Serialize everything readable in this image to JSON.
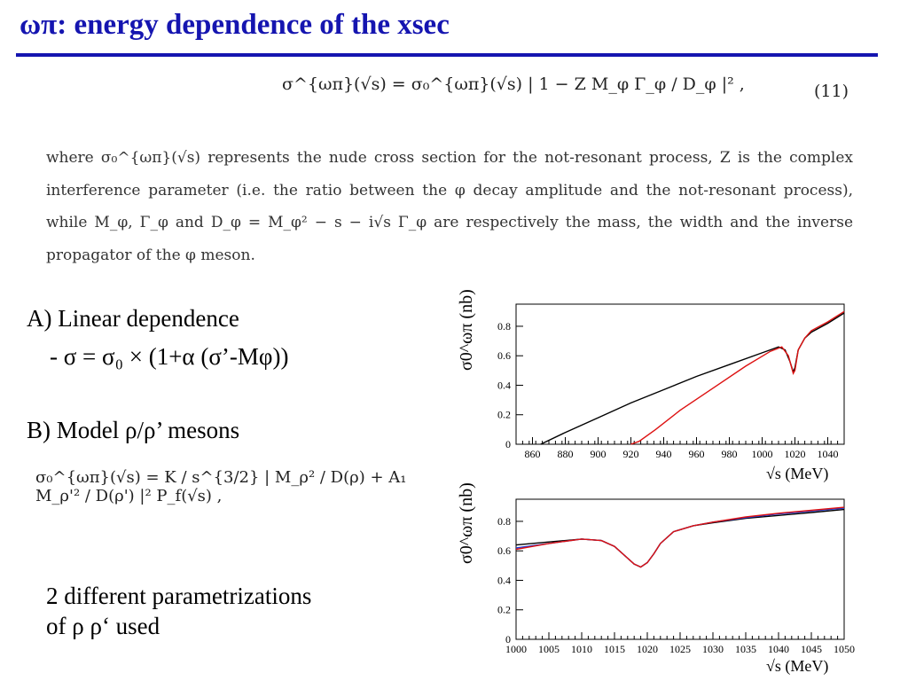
{
  "slide": {
    "title": "ωπ: energy dependence of the xsec",
    "eq11": {
      "body": "σ^{ωπ}(√s) = σ₀^{ωπ}(√s) | 1 − Z M_φ Γ_φ / D_φ |² ,",
      "number": "(11)"
    },
    "paragraph": "where σ₀^{ωπ}(√s) represents the nude cross section for the not-resonant process, Z is the complex interference parameter (i.e. the ratio between the φ decay amplitude and the not-resonant process), while M_φ, Γ_φ and D_φ = M_φ² − s − i√s Γ_φ are respectively the mass, the width and the inverse propagator of the φ meson.",
    "headingA": "A)  Linear dependence",
    "formulaA": "- σ = σ₀ × (1+α (σ’-Mφ))",
    "headingB": "B) Model ρ/ρ’ mesons",
    "eqB": "σ₀^{ωπ}(√s) = K / s^{3/2} | M_ρ² / D(ρ) + A₁ M_ρ'² / D(ρ') |² P_f(√s) ,",
    "note_line1": "2 different parametrizations",
    "note_line2": "of ρ ρ‘ used"
  },
  "chart_data": [
    {
      "type": "line",
      "ylabel": "σ0^ωπ (nb)",
      "xlabel": "√s (MeV)",
      "xlim": [
        850,
        1050
      ],
      "ylim": [
        0,
        0.95
      ],
      "x_ticks": [
        860,
        880,
        900,
        920,
        940,
        960,
        980,
        1000,
        1020,
        1040
      ],
      "y_ticks": [
        0,
        0.2,
        0.4,
        0.6,
        0.8
      ],
      "series": [
        {
          "color": "#000000",
          "x": [
            865,
            880,
            900,
            920,
            940,
            960,
            980,
            1000,
            1010,
            1014,
            1017,
            1019,
            1020,
            1022,
            1026,
            1030,
            1040,
            1050
          ],
          "y": [
            0.0,
            0.08,
            0.18,
            0.28,
            0.37,
            0.46,
            0.54,
            0.62,
            0.66,
            0.64,
            0.56,
            0.49,
            0.52,
            0.64,
            0.72,
            0.76,
            0.82,
            0.89
          ]
        },
        {
          "color": "#dd1111",
          "x": [
            920,
            925,
            935,
            950,
            970,
            990,
            1005,
            1012,
            1016,
            1018,
            1019,
            1020,
            1022,
            1026,
            1030,
            1040,
            1050
          ],
          "y": [
            0.0,
            0.02,
            0.1,
            0.23,
            0.38,
            0.53,
            0.63,
            0.66,
            0.6,
            0.52,
            0.48,
            0.5,
            0.64,
            0.72,
            0.77,
            0.83,
            0.9
          ]
        }
      ]
    },
    {
      "type": "line",
      "ylabel": "σ0^ωπ (nb)",
      "xlabel": "√s (MeV)",
      "xlim": [
        1000,
        1050
      ],
      "ylim": [
        0,
        0.95
      ],
      "x_ticks": [
        1000,
        1005,
        1010,
        1015,
        1020,
        1025,
        1030,
        1035,
        1040,
        1045,
        1050
      ],
      "y_ticks": [
        0,
        0.2,
        0.4,
        0.6,
        0.8
      ],
      "series": [
        {
          "color": "#000000",
          "x": [
            1000,
            1005,
            1010,
            1013,
            1015,
            1017,
            1018,
            1019,
            1020,
            1021,
            1022,
            1024,
            1027,
            1030,
            1035,
            1040,
            1045,
            1050
          ],
          "y": [
            0.64,
            0.66,
            0.68,
            0.67,
            0.63,
            0.55,
            0.51,
            0.49,
            0.52,
            0.58,
            0.65,
            0.73,
            0.77,
            0.79,
            0.82,
            0.84,
            0.86,
            0.88
          ]
        },
        {
          "color": "#1a3ad8",
          "x": [
            1000,
            1005,
            1010,
            1013,
            1015,
            1017,
            1018,
            1019,
            1020,
            1021,
            1022,
            1024,
            1027,
            1030,
            1035,
            1040,
            1045,
            1050
          ],
          "y": [
            0.62,
            0.65,
            0.68,
            0.67,
            0.63,
            0.55,
            0.51,
            0.49,
            0.52,
            0.58,
            0.65,
            0.73,
            0.77,
            0.795,
            0.825,
            0.85,
            0.87,
            0.89
          ]
        },
        {
          "color": "#dd1111",
          "x": [
            1000,
            1005,
            1010,
            1013,
            1015,
            1017,
            1018,
            1019,
            1020,
            1021,
            1022,
            1024,
            1027,
            1030,
            1035,
            1040,
            1045,
            1050
          ],
          "y": [
            0.61,
            0.65,
            0.68,
            0.67,
            0.63,
            0.55,
            0.51,
            0.49,
            0.52,
            0.58,
            0.65,
            0.73,
            0.77,
            0.795,
            0.83,
            0.855,
            0.875,
            0.895
          ]
        }
      ]
    }
  ]
}
